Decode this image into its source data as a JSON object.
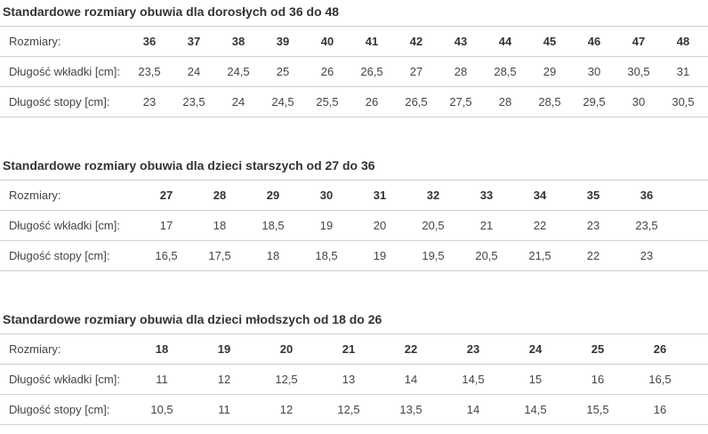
{
  "page": {
    "background": "#ffffff",
    "title_color": "#333333",
    "text_color": "#454545",
    "divider_color": "#d0d0d0"
  },
  "tables": [
    {
      "title": "Standardowe rozmiary obuwia dla dorosłych od 36 do 48",
      "rows": [
        {
          "label": "Rozmiary:",
          "values": [
            "36",
            "37",
            "38",
            "39",
            "40",
            "41",
            "42",
            "43",
            "44",
            "45",
            "46",
            "47",
            "48"
          ]
        },
        {
          "label": "Długość wkładki [cm]:",
          "values": [
            "23,5",
            "24",
            "24,5",
            "25",
            "26",
            "26,5",
            "27",
            "28",
            "28,5",
            "29",
            "30",
            "30,5",
            "31"
          ]
        },
        {
          "label": "Długość stopy [cm]:",
          "values": [
            "23",
            "23,5",
            "24",
            "24,5",
            "25,5",
            "26",
            "26,5",
            "27,5",
            "28",
            "28,5",
            "29,5",
            "30",
            "30,5"
          ]
        }
      ]
    },
    {
      "title": "Standardowe rozmiary obuwia dla dzieci starszych od 27 do 36",
      "rows": [
        {
          "label": "Rozmiary:",
          "values": [
            "27",
            "28",
            "29",
            "30",
            "31",
            "32",
            "33",
            "34",
            "35",
            "36"
          ]
        },
        {
          "label": "Długość wkładki [cm]:",
          "values": [
            "17",
            "18",
            "18,5",
            "19",
            "20",
            "20,5",
            "21",
            "22",
            "23",
            "23,5"
          ]
        },
        {
          "label": "Długość stopy [cm]:",
          "values": [
            "16,5",
            "17,5",
            "18",
            "18,5",
            "19",
            "19,5",
            "20,5",
            "21,5",
            "22",
            "23"
          ]
        }
      ]
    },
    {
      "title": "Standardowe rozmiary obuwia dla dzieci młodszych od 18 do 26",
      "rows": [
        {
          "label": "Rozmiary:",
          "values": [
            "18",
            "19",
            "20",
            "21",
            "22",
            "23",
            "24",
            "25",
            "26"
          ]
        },
        {
          "label": "Długość wkładki [cm]:",
          "values": [
            "11",
            "12",
            "12,5",
            "13",
            "14",
            "14,5",
            "15",
            "16",
            "16,5"
          ]
        },
        {
          "label": "Długość stopy [cm]:",
          "values": [
            "10,5",
            "11",
            "12",
            "12,5",
            "13,5",
            "14",
            "14,5",
            "15,5",
            "16"
          ]
        }
      ]
    }
  ]
}
